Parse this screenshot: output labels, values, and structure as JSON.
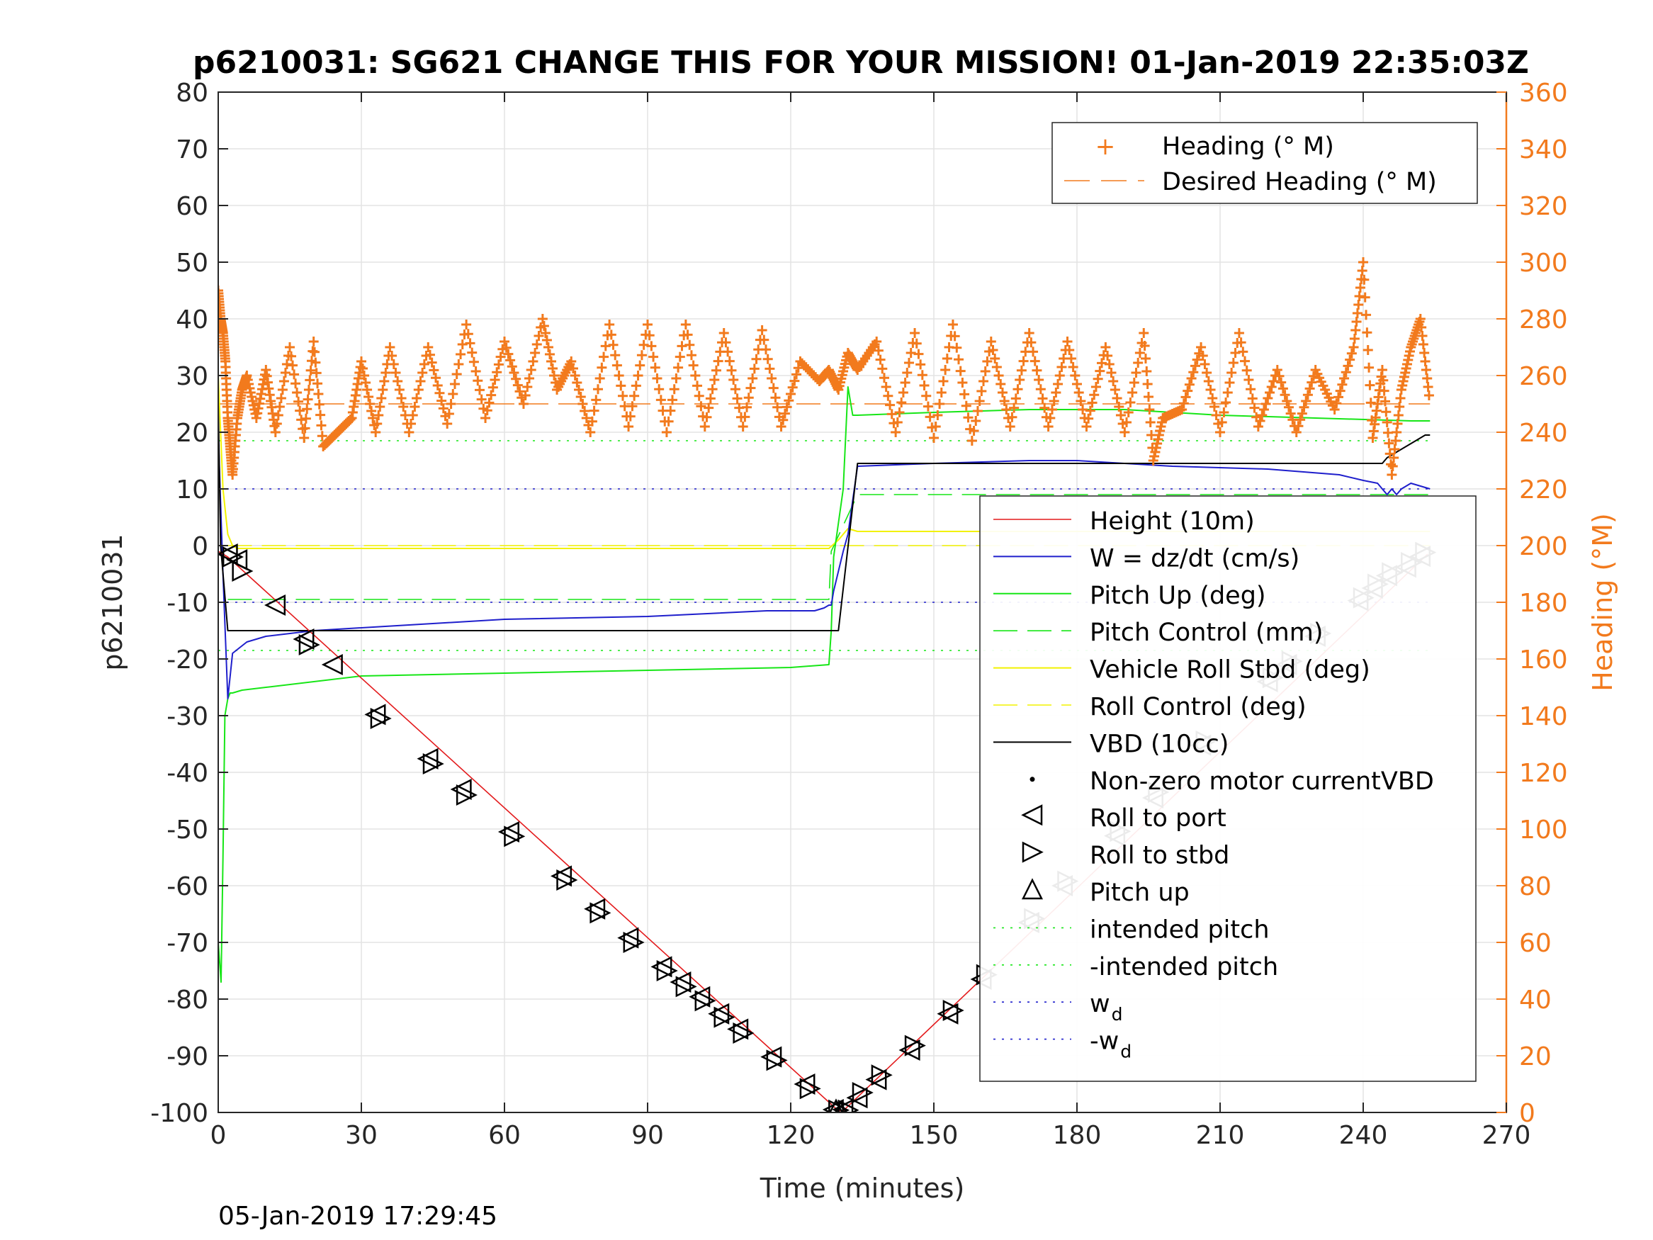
{
  "chart_data": {
    "type": "line",
    "title": "p6210031: SG621 CHANGE THIS FOR YOUR MISSION! 01-Jan-2019 22:35:03Z",
    "xlabel": "Time (minutes)",
    "ylabel": "p6210031",
    "y2label": "Heading (°M)",
    "timestamp": "05-Jan-2019 17:29:45",
    "xlim": [
      0,
      270
    ],
    "ylim": [
      -100,
      80
    ],
    "y2lim": [
      0,
      360
    ],
    "grid": true,
    "xticks": [
      "0",
      "30",
      "60",
      "90",
      "120",
      "150",
      "180",
      "210",
      "240",
      "270"
    ],
    "yticks": [
      "80",
      "70",
      "60",
      "50",
      "40",
      "30",
      "20",
      "10",
      "0",
      "-10",
      "-20",
      "-30",
      "-40",
      "-50",
      "-60",
      "-70",
      "-80",
      "-90",
      "-100"
    ],
    "y2ticks": [
      "360",
      "340",
      "320",
      "300",
      "280",
      "260",
      "240",
      "220",
      "200",
      "180",
      "160",
      "140",
      "120",
      "100",
      "80",
      "60",
      "40",
      "20",
      "0"
    ],
    "colors": {
      "heading": "#f27a1d",
      "height": "#e31a1c",
      "w": "#1f1fcc",
      "pitch": "#17e617",
      "roll": "#f2f200",
      "vbd": "#000000",
      "axis_right": "#f27a1d"
    },
    "legend_heading": {
      "placement": "top-right",
      "entries": [
        "Heading (° M)",
        "Desired Heading (° M)"
      ]
    },
    "legend_main": {
      "placement": "right",
      "entries": [
        "Height (10m)",
        "W = dz/dt (cm/s)",
        "Pitch Up (deg)",
        "Pitch Control (mm)",
        "Vehicle Roll Stbd (deg)",
        "Roll Control (deg)",
        "VBD (10cc)",
        "Non-zero motor currentVBD",
        "Roll to port",
        "Roll to stbd",
        "Pitch up",
        "intended pitch",
        "-intended pitch",
        "w",
        "-w"
      ],
      "subscript": "d"
    },
    "series": [
      {
        "name": "Height (10m)",
        "axis": "left",
        "x": [
          0,
          2,
          130,
          131,
          253.5
        ],
        "y": [
          -1,
          -2,
          -99.7,
          -99.7,
          -1.5
        ]
      },
      {
        "name": "W = dz/dt (cm/s)",
        "axis": "left",
        "x": [
          0,
          1,
          2,
          3,
          6,
          10,
          20,
          40,
          60,
          90,
          115,
          120,
          125,
          127,
          128,
          128.5,
          129,
          131,
          132,
          133,
          134,
          150,
          170,
          180,
          200,
          220,
          235,
          240,
          243,
          244,
          245,
          246,
          247,
          248,
          249,
          250,
          252,
          254
        ],
        "y": [
          20,
          -5,
          -27,
          -19,
          -17,
          -16,
          -15,
          -14,
          -13,
          -12.5,
          -11.5,
          -11.5,
          -11.5,
          -11,
          -10.5,
          -10.5,
          -8,
          -1,
          2,
          8,
          14,
          14.5,
          15,
          15,
          14,
          13.5,
          12.5,
          11.5,
          11,
          10,
          9,
          10,
          9,
          10,
          10.5,
          11,
          10.5,
          10
        ]
      },
      {
        "name": "Pitch Up (deg)",
        "axis": "left",
        "x": [
          0,
          0.6,
          1,
          1.4,
          2,
          2.5,
          3,
          5,
          10,
          30,
          60,
          90,
          120,
          128,
          128.5,
          129,
          131,
          132,
          133,
          134,
          150,
          170,
          190,
          210,
          230,
          250,
          254
        ],
        "y": [
          -70,
          -77,
          -55,
          -30,
          -27,
          -26,
          -26,
          -25.5,
          -25,
          -23,
          -22.5,
          -22,
          -21.5,
          -21,
          -15,
          -2,
          10,
          28,
          23,
          23,
          23.5,
          24,
          24,
          23,
          22.5,
          22,
          22
        ]
      },
      {
        "name": "Pitch Control (mm)",
        "axis": "left",
        "x": [
          2,
          128,
          128.5,
          134,
          254
        ],
        "y": [
          -9.5,
          -9.5,
          -1,
          9,
          9
        ],
        "dash": true
      },
      {
        "name": "Vehicle Roll Stbd (deg)",
        "axis": "left",
        "x": [
          0,
          1,
          2,
          3,
          4,
          128,
          130,
          132,
          134,
          254
        ],
        "y": [
          30,
          10,
          2,
          0,
          -0.5,
          -0.5,
          1,
          3,
          2.5,
          2.5
        ]
      },
      {
        "name": "Roll Control (deg)",
        "axis": "left",
        "x": [
          2,
          128,
          134,
          254
        ],
        "y": [
          0,
          0,
          0,
          0
        ],
        "dash": true
      },
      {
        "name": "VBD (10cc)",
        "axis": "left",
        "x": [
          0,
          0.5,
          2,
          130,
          134,
          244,
          245,
          247,
          249,
          251,
          253,
          254
        ],
        "y": [
          25,
          0,
          -15,
          -15,
          14.5,
          14.5,
          15.5,
          16.5,
          17.5,
          18.5,
          19.5,
          19.5
        ]
      },
      {
        "name": "intended pitch",
        "axis": "left",
        "x": [
          0,
          254
        ],
        "y": [
          18.5,
          18.5
        ],
        "dash": true
      },
      {
        "name": "-intended pitch",
        "axis": "left",
        "x": [
          0,
          254
        ],
        "y": [
          -18.5,
          -18.5
        ],
        "dash": true
      },
      {
        "name": "w",
        "axis": "left",
        "x": [
          0,
          254
        ],
        "y": [
          10,
          10
        ],
        "dash": true
      },
      {
        "name": "-w",
        "axis": "left",
        "x": [
          0,
          254
        ],
        "y": [
          -10,
          -10
        ],
        "dash": true
      },
      {
        "name": "Desired Heading (° M)",
        "axis": "right",
        "x": [
          0,
          254
        ],
        "y": [
          250,
          250
        ],
        "dash": true
      },
      {
        "name": "Heading (° M)",
        "axis": "right",
        "marker": "+",
        "x": [
          0,
          0.5,
          1,
          1.5,
          2,
          2.5,
          3,
          4,
          5,
          6,
          8,
          10,
          12,
          15,
          18,
          20,
          22,
          25,
          28,
          30,
          33,
          36,
          40,
          44,
          48,
          52,
          56,
          60,
          64,
          68,
          71,
          74,
          78,
          82,
          86,
          90,
          94,
          98,
          102,
          106,
          110,
          114,
          118,
          122,
          126,
          128,
          130,
          132,
          134,
          138,
          142,
          146,
          150,
          154,
          158,
          162,
          166,
          170,
          174,
          178,
          182,
          186,
          190,
          194,
          196,
          198,
          202,
          206,
          210,
          214,
          218,
          222,
          226,
          230,
          234,
          238,
          240,
          242,
          244,
          246,
          248,
          250,
          252,
          254
        ],
        "y": [
          290,
          280,
          275,
          265,
          245,
          235,
          225,
          245,
          255,
          260,
          245,
          262,
          240,
          270,
          238,
          272,
          235,
          240,
          245,
          265,
          240,
          270,
          240,
          270,
          243,
          278,
          245,
          272,
          250,
          280,
          255,
          265,
          240,
          278,
          242,
          278,
          240,
          278,
          242,
          275,
          242,
          276,
          242,
          265,
          258,
          262,
          255,
          268,
          262,
          272,
          240,
          275,
          238,
          278,
          237,
          272,
          242,
          275,
          242,
          272,
          242,
          270,
          240,
          275,
          230,
          245,
          248,
          270,
          240,
          275,
          242,
          262,
          240,
          262,
          248,
          270,
          300,
          238,
          262,
          225,
          255,
          270,
          280,
          250
        ]
      }
    ],
    "markers": {
      "roll_to_port": {
        "x": [
          2,
          4,
          12,
          18,
          24,
          33,
          44,
          51,
          61,
          72,
          79,
          86,
          93,
          97,
          101,
          105,
          109,
          116,
          123,
          129,
          131,
          134,
          138,
          145,
          153,
          160,
          170,
          177,
          188,
          196,
          206,
          220,
          224,
          230,
          239,
          242,
          245,
          249,
          252
        ],
        "y": [
          -1.5,
          -2.5,
          -10.5,
          -16.5,
          -21,
          -29.8,
          -37.6,
          -43,
          -50.5,
          -58.3,
          -64.1,
          -69.2,
          -74.3,
          -77,
          -79.6,
          -82.6,
          -85.3,
          -90.2,
          -95,
          -99.5,
          -99.5,
          -97.4,
          -94.2,
          -89,
          -82.6,
          -76.5,
          -66.5,
          -60,
          -51.2,
          -44.5,
          -35.2,
          -24,
          -21,
          -16,
          -9.7,
          -7.5,
          -5.3,
          -3.8,
          -1.9
        ]
      },
      "roll_to_stbd": {
        "x": [
          3,
          5,
          19,
          34,
          45,
          52,
          62,
          73,
          80,
          87,
          94,
          98,
          102,
          106,
          110,
          117,
          124,
          130,
          132,
          135,
          139,
          146,
          154,
          161,
          171,
          178,
          189,
          197,
          207,
          221,
          225,
          231,
          240,
          243,
          246,
          250,
          253
        ],
        "y": [
          -2,
          -4.5,
          -17.5,
          -30.5,
          -38.5,
          -44,
          -51.3,
          -59,
          -64.8,
          -70,
          -75,
          -77.8,
          -80.3,
          -83.2,
          -86,
          -90.8,
          -95.8,
          -99.6,
          -99.6,
          -96.5,
          -93.4,
          -88.2,
          -82,
          -75.7,
          -65.8,
          -59.2,
          -50.4,
          -43.5,
          -34.5,
          -23.3,
          -20.4,
          -15.5,
          -9.2,
          -6.8,
          -4.8,
          -3,
          -1.2
        ]
      },
      "pitch_up": {
        "x": [
          129.5,
          130.5
        ],
        "y": [
          -99.5,
          -99.8
        ]
      }
    }
  }
}
